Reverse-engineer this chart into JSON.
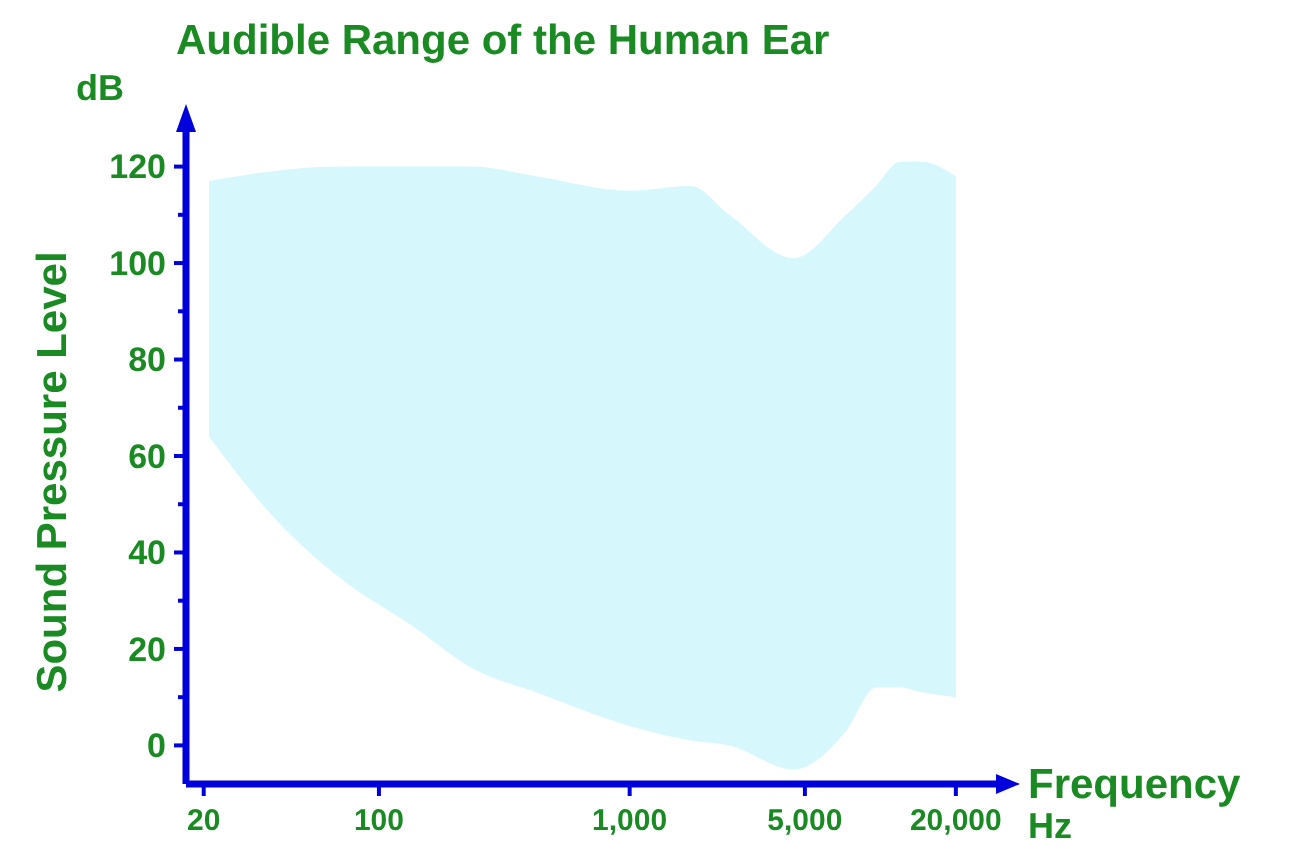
{
  "chart_data": {
    "type": "area",
    "title": "Audible Range of the Human Ear",
    "xlabel": "Frequency",
    "ylabel": "Sound Pressure Level",
    "annotations": [
      "dB",
      "Hz"
    ],
    "log": "x",
    "xlim": [
      17,
      30000
    ],
    "xticks": [
      20,
      {
        "value": 100,
        "label": "100"
      },
      {
        "value": 1000,
        "label": "1,000"
      },
      {
        "value": 5000,
        "label": "5,000"
      },
      {
        "value": 20000,
        "label": "20,000"
      }
    ],
    "ylim": [
      -8,
      128
    ],
    "yticks": [
      0,
      {
        "value": 10,
        "label": null
      },
      20,
      {
        "value": 30,
        "label": null
      },
      40,
      {
        "value": 50,
        "label": null
      },
      60,
      {
        "value": 70,
        "label": null
      },
      80,
      {
        "value": 90,
        "label": null
      },
      100,
      {
        "value": 110,
        "label": null
      },
      120
    ],
    "grid": false,
    "series": [
      {
        "color": "#d6f8fc",
        "x": [
          21,
          37,
          73,
          134,
          236,
          424,
          1000,
          1750,
          2500,
          4500,
          7300,
          9600,
          12000,
          14600,
          20000
        ],
        "values": [
          null,
          null,
          null,
          null,
          null,
          null,
          null,
          null,
          null,
          null,
          null,
          null,
          null,
          null,
          null
        ],
        "upper": [
          117,
          119,
          120,
          120,
          120,
          118,
          115,
          116,
          110,
          101,
          110,
          116,
          121,
          121,
          118
        ],
        "lower": [
          64,
          48,
          34,
          25,
          16,
          11,
          4,
          1,
          0,
          -5,
          3,
          12,
          12,
          11,
          10
        ]
      }
    ]
  }
}
